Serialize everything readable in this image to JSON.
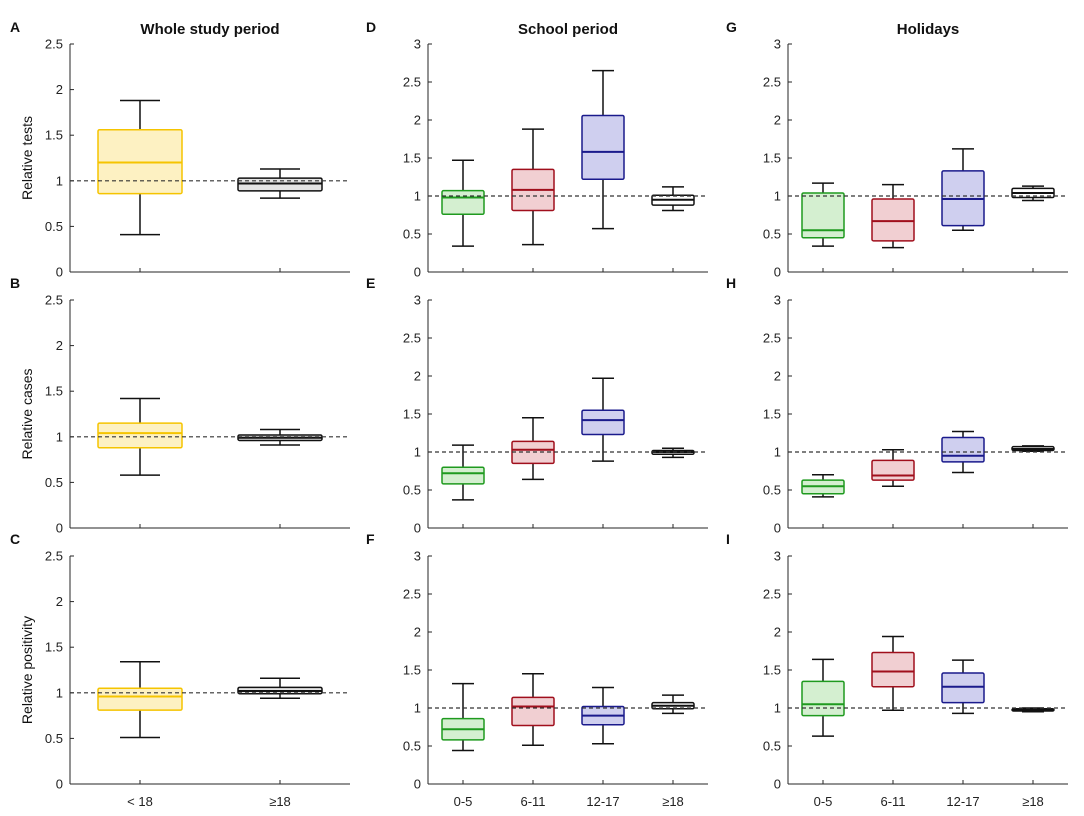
{
  "figure": {
    "column_titles": [
      "Whole study period",
      "School period",
      "Holidays"
    ],
    "row_ylabels": [
      "Relative tests",
      "Relative cases",
      "Relative positivity"
    ],
    "colors": {
      "yellow": {
        "edge": "#f5c400",
        "fill": "#fdf1c2"
      },
      "gray": {
        "edge": "#111111",
        "fill": "#e4e4e4"
      },
      "green": {
        "edge": "#1f9a1f",
        "fill": "#d4efd0"
      },
      "red": {
        "edge": "#a00f1c",
        "fill": "#f1cfd2"
      },
      "blue": {
        "edge": "#1a1a8c",
        "fill": "#cfcfef"
      },
      "black": {
        "edge": "#111111",
        "fill": "#ffffff"
      }
    }
  },
  "chart_data": [
    {
      "type": "box",
      "panel": "A",
      "row": 0,
      "col": 0,
      "title": "Whole study period",
      "ylabel": "Relative tests",
      "ylim": [
        0,
        2.5
      ],
      "yticks": [
        "0",
        "0.5",
        "1",
        "1.5",
        "2",
        "2.5"
      ],
      "reference_line": 1,
      "categories": [
        "< 18",
        "≥18"
      ],
      "show_xticks": false,
      "boxes": [
        {
          "category": "< 18",
          "min": 0.41,
          "q1": 0.86,
          "median": 1.2,
          "q3": 1.56,
          "max": 1.88,
          "color": "yellow"
        },
        {
          "category": "≥18",
          "min": 0.81,
          "q1": 0.89,
          "median": 0.97,
          "q3": 1.03,
          "max": 1.13,
          "color": "gray"
        }
      ]
    },
    {
      "type": "box",
      "panel": "B",
      "row": 1,
      "col": 0,
      "title": "",
      "ylabel": "Relative cases",
      "ylim": [
        0,
        2.5
      ],
      "yticks": [
        "0",
        "0.5",
        "1",
        "1.5",
        "2",
        "2.5"
      ],
      "reference_line": 1,
      "categories": [
        "< 18",
        "≥18"
      ],
      "show_xticks": false,
      "boxes": [
        {
          "category": "< 18",
          "min": 0.58,
          "q1": 0.88,
          "median": 1.04,
          "q3": 1.15,
          "max": 1.42,
          "color": "yellow"
        },
        {
          "category": "≥18",
          "min": 0.91,
          "q1": 0.96,
          "median": 0.99,
          "q3": 1.02,
          "max": 1.08,
          "color": "gray"
        }
      ]
    },
    {
      "type": "box",
      "panel": "C",
      "row": 2,
      "col": 0,
      "title": "",
      "ylabel": "Relative positivity",
      "ylim": [
        0,
        2.5
      ],
      "yticks": [
        "0",
        "0.5",
        "1",
        "1.5",
        "2",
        "2.5"
      ],
      "reference_line": 1,
      "categories": [
        "< 18",
        "≥18"
      ],
      "show_xticks": true,
      "boxes": [
        {
          "category": "< 18",
          "min": 0.51,
          "q1": 0.81,
          "median": 0.96,
          "q3": 1.05,
          "max": 1.34,
          "color": "yellow"
        },
        {
          "category": "≥18",
          "min": 0.94,
          "q1": 0.99,
          "median": 1.02,
          "q3": 1.06,
          "max": 1.16,
          "color": "gray"
        }
      ]
    },
    {
      "type": "box",
      "panel": "D",
      "row": 0,
      "col": 1,
      "title": "School period",
      "ylabel": "",
      "ylim": [
        0,
        3
      ],
      "yticks": [
        "0",
        "0.5",
        "1",
        "1.5",
        "2",
        "2.5",
        "3"
      ],
      "reference_line": 1,
      "categories": [
        "0-5",
        "6-11",
        "12-17",
        "≥18"
      ],
      "show_xticks": false,
      "boxes": [
        {
          "category": "0-5",
          "min": 0.34,
          "q1": 0.76,
          "median": 0.98,
          "q3": 1.07,
          "max": 1.47,
          "color": "green"
        },
        {
          "category": "6-11",
          "min": 0.36,
          "q1": 0.81,
          "median": 1.08,
          "q3": 1.35,
          "max": 1.88,
          "color": "red"
        },
        {
          "category": "12-17",
          "min": 0.57,
          "q1": 1.22,
          "median": 1.58,
          "q3": 2.06,
          "max": 2.65,
          "color": "blue"
        },
        {
          "category": "≥18",
          "min": 0.81,
          "q1": 0.88,
          "median": 0.95,
          "q3": 1.01,
          "max": 1.12,
          "color": "black"
        }
      ]
    },
    {
      "type": "box",
      "panel": "E",
      "row": 1,
      "col": 1,
      "title": "",
      "ylabel": "",
      "ylim": [
        0,
        3
      ],
      "yticks": [
        "0",
        "0.5",
        "1",
        "1.5",
        "2",
        "2.5",
        "3"
      ],
      "reference_line": 1,
      "categories": [
        "0-5",
        "6-11",
        "12-17",
        "≥18"
      ],
      "show_xticks": false,
      "boxes": [
        {
          "category": "0-5",
          "min": 0.37,
          "q1": 0.58,
          "median": 0.72,
          "q3": 0.8,
          "max": 1.09,
          "color": "green"
        },
        {
          "category": "6-11",
          "min": 0.64,
          "q1": 0.85,
          "median": 1.03,
          "q3": 1.14,
          "max": 1.45,
          "color": "red"
        },
        {
          "category": "12-17",
          "min": 0.88,
          "q1": 1.23,
          "median": 1.42,
          "q3": 1.55,
          "max": 1.97,
          "color": "blue"
        },
        {
          "category": "≥18",
          "min": 0.93,
          "q1": 0.97,
          "median": 1.0,
          "q3": 1.02,
          "max": 1.05,
          "color": "black"
        }
      ]
    },
    {
      "type": "box",
      "panel": "F",
      "row": 2,
      "col": 1,
      "title": "",
      "ylabel": "",
      "ylim": [
        0,
        3
      ],
      "yticks": [
        "0",
        "0.5",
        "1",
        "1.5",
        "2",
        "2.5",
        "3"
      ],
      "reference_line": 1,
      "categories": [
        "0-5",
        "6-11",
        "12-17",
        "≥18"
      ],
      "show_xticks": true,
      "boxes": [
        {
          "category": "0-5",
          "min": 0.44,
          "q1": 0.58,
          "median": 0.72,
          "q3": 0.86,
          "max": 1.32,
          "color": "green"
        },
        {
          "category": "6-11",
          "min": 0.51,
          "q1": 0.77,
          "median": 1.02,
          "q3": 1.14,
          "max": 1.45,
          "color": "red"
        },
        {
          "category": "12-17",
          "min": 0.53,
          "q1": 0.78,
          "median": 0.9,
          "q3": 1.02,
          "max": 1.27,
          "color": "blue"
        },
        {
          "category": "≥18",
          "min": 0.93,
          "q1": 0.99,
          "median": 1.03,
          "q3": 1.07,
          "max": 1.17,
          "color": "black"
        }
      ]
    },
    {
      "type": "box",
      "panel": "G",
      "row": 0,
      "col": 2,
      "title": "Holidays",
      "ylabel": "",
      "ylim": [
        0,
        3
      ],
      "yticks": [
        "0",
        "0.5",
        "1",
        "1.5",
        "2",
        "2.5",
        "3"
      ],
      "reference_line": 1,
      "categories": [
        "0-5",
        "6-11",
        "12-17",
        "≥18"
      ],
      "show_xticks": false,
      "boxes": [
        {
          "category": "0-5",
          "min": 0.34,
          "q1": 0.45,
          "median": 0.55,
          "q3": 1.04,
          "max": 1.17,
          "color": "green"
        },
        {
          "category": "6-11",
          "min": 0.32,
          "q1": 0.41,
          "median": 0.67,
          "q3": 0.96,
          "max": 1.15,
          "color": "red"
        },
        {
          "category": "12-17",
          "min": 0.55,
          "q1": 0.61,
          "median": 0.96,
          "q3": 1.33,
          "max": 1.62,
          "color": "blue"
        },
        {
          "category": "≥18",
          "min": 0.94,
          "q1": 0.98,
          "median": 1.04,
          "q3": 1.1,
          "max": 1.13,
          "color": "black"
        }
      ]
    },
    {
      "type": "box",
      "panel": "H",
      "row": 1,
      "col": 2,
      "title": "",
      "ylabel": "",
      "ylim": [
        0,
        3
      ],
      "yticks": [
        "0",
        "0.5",
        "1",
        "1.5",
        "2",
        "2.5",
        "3"
      ],
      "reference_line": 1,
      "categories": [
        "0-5",
        "6-11",
        "12-17",
        "≥18"
      ],
      "show_xticks": false,
      "boxes": [
        {
          "category": "0-5",
          "min": 0.41,
          "q1": 0.45,
          "median": 0.55,
          "q3": 0.63,
          "max": 0.7,
          "color": "green"
        },
        {
          "category": "6-11",
          "min": 0.55,
          "q1": 0.63,
          "median": 0.69,
          "q3": 0.89,
          "max": 1.03,
          "color": "red"
        },
        {
          "category": "12-17",
          "min": 0.73,
          "q1": 0.87,
          "median": 0.95,
          "q3": 1.19,
          "max": 1.27,
          "color": "blue"
        },
        {
          "category": "≥18",
          "min": 1.01,
          "q1": 1.02,
          "median": 1.04,
          "q3": 1.07,
          "max": 1.08,
          "color": "black"
        }
      ]
    },
    {
      "type": "box",
      "panel": "I",
      "row": 2,
      "col": 2,
      "title": "",
      "ylabel": "",
      "ylim": [
        0,
        3
      ],
      "yticks": [
        "0",
        "0.5",
        "1",
        "1.5",
        "2",
        "2.5",
        "3"
      ],
      "reference_line": 1,
      "categories": [
        "0-5",
        "6-11",
        "12-17",
        "≥18"
      ],
      "show_xticks": true,
      "boxes": [
        {
          "category": "0-5",
          "min": 0.63,
          "q1": 0.9,
          "median": 1.05,
          "q3": 1.35,
          "max": 1.64,
          "color": "green"
        },
        {
          "category": "6-11",
          "min": 0.97,
          "q1": 1.28,
          "median": 1.48,
          "q3": 1.73,
          "max": 1.94,
          "color": "red"
        },
        {
          "category": "12-17",
          "min": 0.93,
          "q1": 1.07,
          "median": 1.28,
          "q3": 1.46,
          "max": 1.63,
          "color": "blue"
        },
        {
          "category": "≥18",
          "min": 0.95,
          "q1": 0.96,
          "median": 0.98,
          "q3": 0.99,
          "max": 1.0,
          "color": "black"
        }
      ]
    }
  ]
}
